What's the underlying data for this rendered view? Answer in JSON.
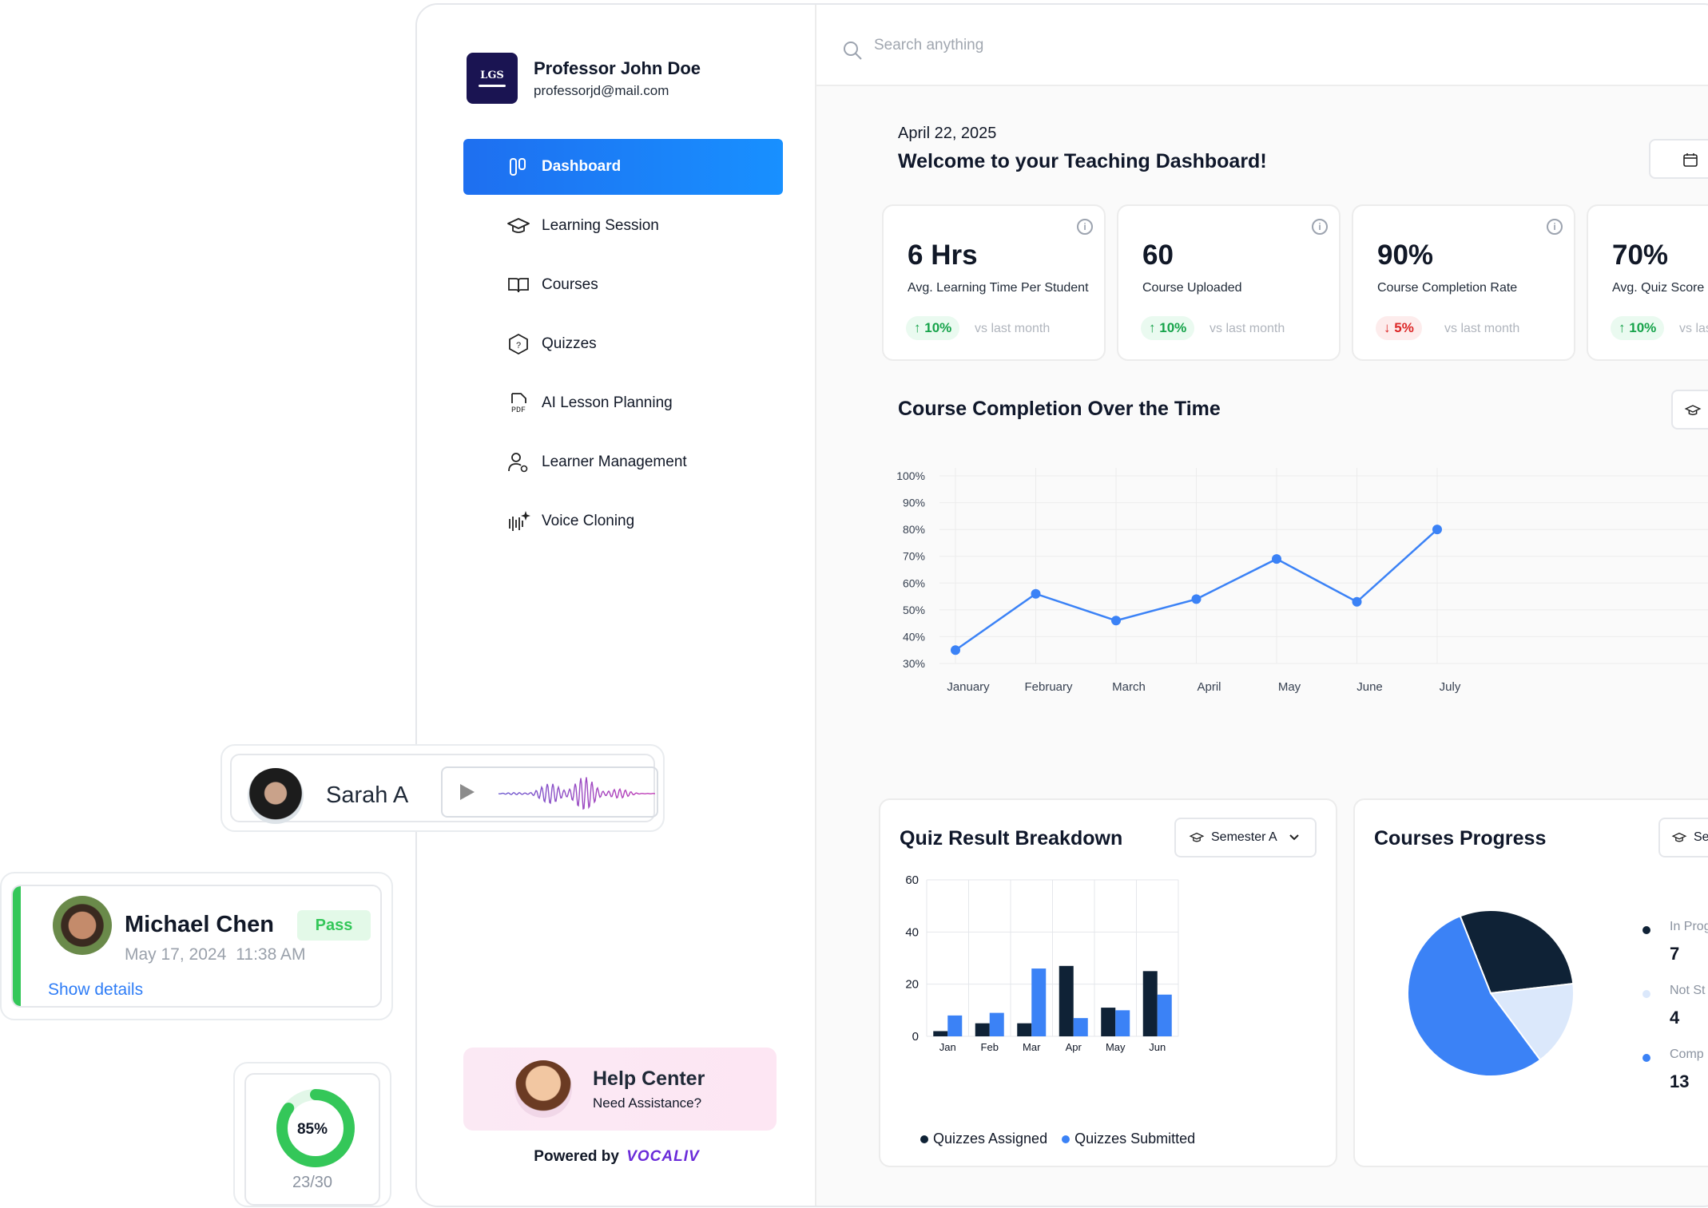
{
  "profile": {
    "logo_text": "LGS",
    "name": "Professor John Doe",
    "email": "professorjd@mail.com"
  },
  "nav": [
    {
      "label": "Dashboard",
      "icon": "dashboard-icon",
      "active": true
    },
    {
      "label": "Learning Session",
      "icon": "graduation-cap-icon"
    },
    {
      "label": "Courses",
      "icon": "open-book-icon"
    },
    {
      "label": "Quizzes",
      "icon": "question-hexagon-icon"
    },
    {
      "label": "AI Lesson Planning",
      "icon": "pdf-file-icon"
    },
    {
      "label": "Learner Management",
      "icon": "user-gear-icon"
    },
    {
      "label": "Voice Cloning",
      "icon": "sound-wave-sparkle-icon"
    }
  ],
  "help": {
    "title": "Help Center",
    "subtitle": "Need Assistance?"
  },
  "powered": {
    "label": "Powered by",
    "brand": "VOCALIV"
  },
  "search": {
    "placeholder": "Search anything"
  },
  "header": {
    "date": "April 22, 2025",
    "welcome": "Welcome to your Teaching Dashboard!"
  },
  "stats": [
    {
      "value": "6 Hrs",
      "label": "Avg. Learning Time Per Student",
      "change": "10%",
      "direction": "up",
      "vs": "vs last month"
    },
    {
      "value": "60",
      "label": "Course Uploaded",
      "change": "10%",
      "direction": "up",
      "vs": "vs last month"
    },
    {
      "value": "90%",
      "label": "Course Completion Rate",
      "change": "5%",
      "direction": "down",
      "vs": "vs last month"
    },
    {
      "value": "70%",
      "label": "Avg. Quiz Score",
      "change": "10%",
      "direction": "up",
      "vs": "vs last month"
    }
  ],
  "colors": {
    "accent": "#3b82f6",
    "dark": "#0f2236",
    "light_blue": "#dbe8fb",
    "pass": "#34c759",
    "active_nav": "#1e6ff0"
  },
  "chart_data": [
    {
      "type": "line",
      "title": "Course Completion Over the Time",
      "categories": [
        "January",
        "February",
        "March",
        "April",
        "May",
        "June",
        "July"
      ],
      "values": [
        35,
        56,
        46,
        54,
        69,
        53,
        80
      ],
      "ylim": [
        30,
        100
      ],
      "yticks": [
        "30%",
        "40%",
        "50%",
        "60%",
        "70%",
        "80%",
        "90%",
        "100%"
      ],
      "grid": true
    },
    {
      "type": "bar",
      "title": "Quiz Result Breakdown",
      "filter": "Semester A",
      "categories": [
        "Jan",
        "Feb",
        "Mar",
        "Apr",
        "May",
        "Jun"
      ],
      "series": [
        {
          "name": "Quizzes Assigned",
          "values": [
            2,
            5,
            5,
            27,
            11,
            25
          ]
        },
        {
          "name": "Quizzes Submitted",
          "values": [
            8,
            9,
            26,
            7,
            10,
            16
          ]
        }
      ],
      "ylim": [
        0,
        60
      ],
      "yticks": [
        "0",
        "20",
        "40",
        "60"
      ],
      "legend": "bottom"
    },
    {
      "type": "pie",
      "title": "Courses Progress",
      "filter": "Sem",
      "labels": [
        "In Prog",
        "Not St",
        "Comp"
      ],
      "values": [
        7,
        4,
        13
      ],
      "legend": "right"
    }
  ],
  "voice_card": {
    "name": "Sarah A"
  },
  "result_card": {
    "name": "Michael Chen",
    "status": "Pass",
    "date": "May 17, 2024",
    "time": "11:38 AM",
    "link": "Show details"
  },
  "score_card": {
    "percent": 85,
    "percent_label": "85%",
    "fraction": "23/30"
  }
}
